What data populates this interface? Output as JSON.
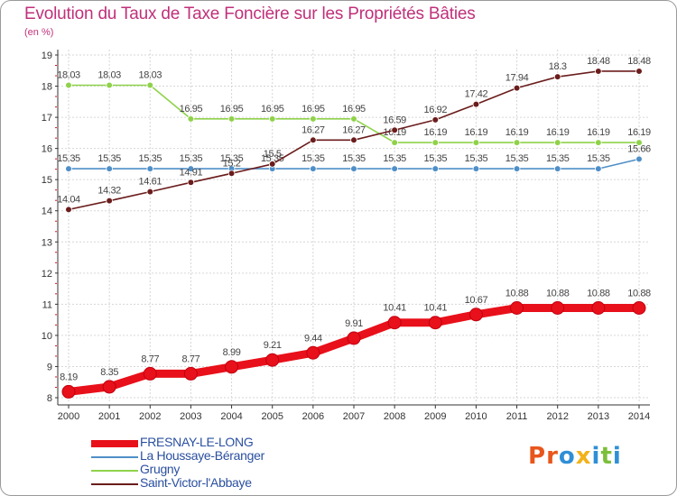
{
  "header": {
    "title": "Evolution du Taux de Taxe Foncière sur les Propriétés Bâties",
    "unit": "(en %)"
  },
  "logo": {
    "text": "Proxiti",
    "letter_colors": [
      "#e8561c",
      "#e8561c",
      "#2f8fd6",
      "#f2b21a",
      "#2f8fd6",
      "#7bbf3a",
      "#2f8fd6"
    ]
  },
  "chart_data": {
    "type": "line",
    "x": [
      2000,
      2001,
      2002,
      2003,
      2004,
      2005,
      2006,
      2007,
      2008,
      2009,
      2010,
      2011,
      2012,
      2013,
      2014
    ],
    "ylim": [
      8,
      19
    ],
    "yticks": [
      8,
      9,
      10,
      11,
      12,
      13,
      14,
      15,
      16,
      17,
      18,
      19
    ],
    "grid": true,
    "legend_position": "bottom-left",
    "series": [
      {
        "name": "FRESNAY-LE-LONG",
        "color": "#e8101a",
        "values": [
          8.19,
          8.35,
          8.77,
          8.77,
          8.99,
          9.21,
          9.44,
          9.91,
          10.41,
          10.41,
          10.67,
          10.88,
          10.88,
          10.88,
          10.88
        ],
        "labels": [
          "8.19",
          "8.35",
          "8.77",
          "8.77",
          "8.99",
          "9.21",
          "9.44",
          "9.91",
          "10.41",
          "10.41",
          "10.67",
          "10.88",
          "10.88",
          "10.88",
          "10.88"
        ]
      },
      {
        "name": "La Houssaye-Béranger",
        "color": "#4f8fc8",
        "values": [
          15.35,
          15.35,
          15.35,
          15.35,
          15.35,
          15.35,
          15.35,
          15.35,
          15.35,
          15.35,
          15.35,
          15.35,
          15.35,
          15.35,
          15.66
        ],
        "labels": [
          "15.35",
          "15.35",
          "15.35",
          "15.35",
          "15.35",
          "15.35",
          "15.35",
          "15.35",
          "15.35",
          "15.35",
          "15.35",
          "15.35",
          "15.35",
          "15.35",
          "15.66"
        ]
      },
      {
        "name": "Grugny",
        "color": "#8fd24a",
        "values": [
          18.03,
          18.03,
          18.03,
          16.95,
          16.95,
          16.95,
          16.95,
          16.95,
          16.19,
          16.19,
          16.19,
          16.19,
          16.19,
          16.19,
          16.19
        ],
        "labels": [
          "18.03",
          "18.03",
          "18.03",
          "16.95",
          "16.95",
          "16.95",
          "16.95",
          "16.95",
          "16.19",
          "16.19",
          "16.19",
          "16.19",
          "16.19",
          "16.19",
          "16.19"
        ]
      },
      {
        "name": "Saint-Victor-l'Abbaye",
        "color": "#6b1c1c",
        "values": [
          14.04,
          14.32,
          14.61,
          14.91,
          15.2,
          15.5,
          16.27,
          16.27,
          16.59,
          16.92,
          17.42,
          17.94,
          18.3,
          18.48,
          18.48
        ],
        "labels": [
          "14.04",
          "14.32",
          "14.61",
          "14.91",
          "15.2",
          "15.5",
          "16.27",
          "16.27",
          "16.59",
          "16.92",
          "17.42",
          "17.94",
          "18.3",
          "18.48",
          "18.48"
        ]
      }
    ]
  }
}
